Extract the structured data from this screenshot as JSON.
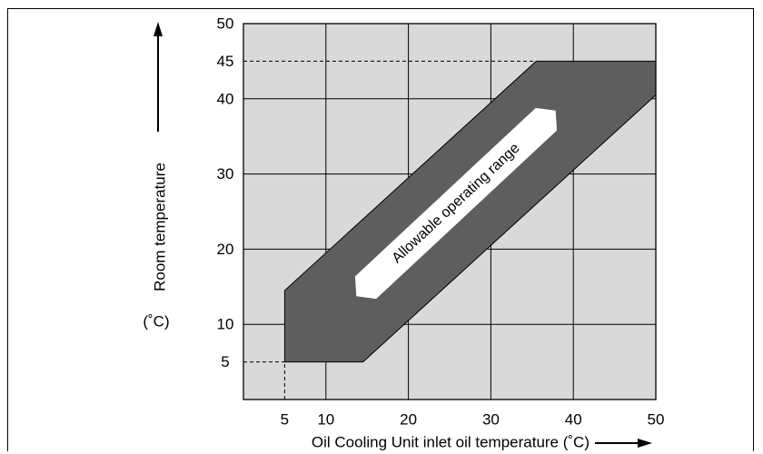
{
  "chart_data": {
    "type": "area",
    "xlabel": "Oil Cooling Unit inlet oil temperature (˚C)",
    "ylabel": "Room temperature",
    "ylabel_unit": "(˚C)",
    "xlim": [
      0,
      50
    ],
    "ylim": [
      0,
      50
    ],
    "x_ticks": [
      5,
      10,
      20,
      30,
      40,
      50
    ],
    "y_ticks": [
      5,
      10,
      20,
      30,
      40,
      45,
      50
    ],
    "grid": true,
    "grid_x": [
      10,
      20,
      30,
      40
    ],
    "grid_y": [
      10,
      20,
      30,
      40
    ],
    "reference_lines": [
      {
        "axis": "y",
        "value": 45,
        "from_x": 0,
        "to_x": 35.5
      },
      {
        "axis": "y",
        "value": 5,
        "from_x": 0,
        "to_x": 5
      },
      {
        "axis": "x",
        "value": 5,
        "from_y": 0,
        "to_y": 5
      }
    ],
    "region": {
      "name": "Allowable operating range",
      "polygon": [
        [
          5,
          5
        ],
        [
          14.5,
          5
        ],
        [
          50,
          40.5
        ],
        [
          50,
          45
        ],
        [
          35.5,
          45
        ],
        [
          5,
          14.5
        ]
      ]
    },
    "colors": {
      "plot_background": "#d9d9d9",
      "region_fill": "#5e5e5e",
      "label_box": "#ffffff"
    }
  }
}
